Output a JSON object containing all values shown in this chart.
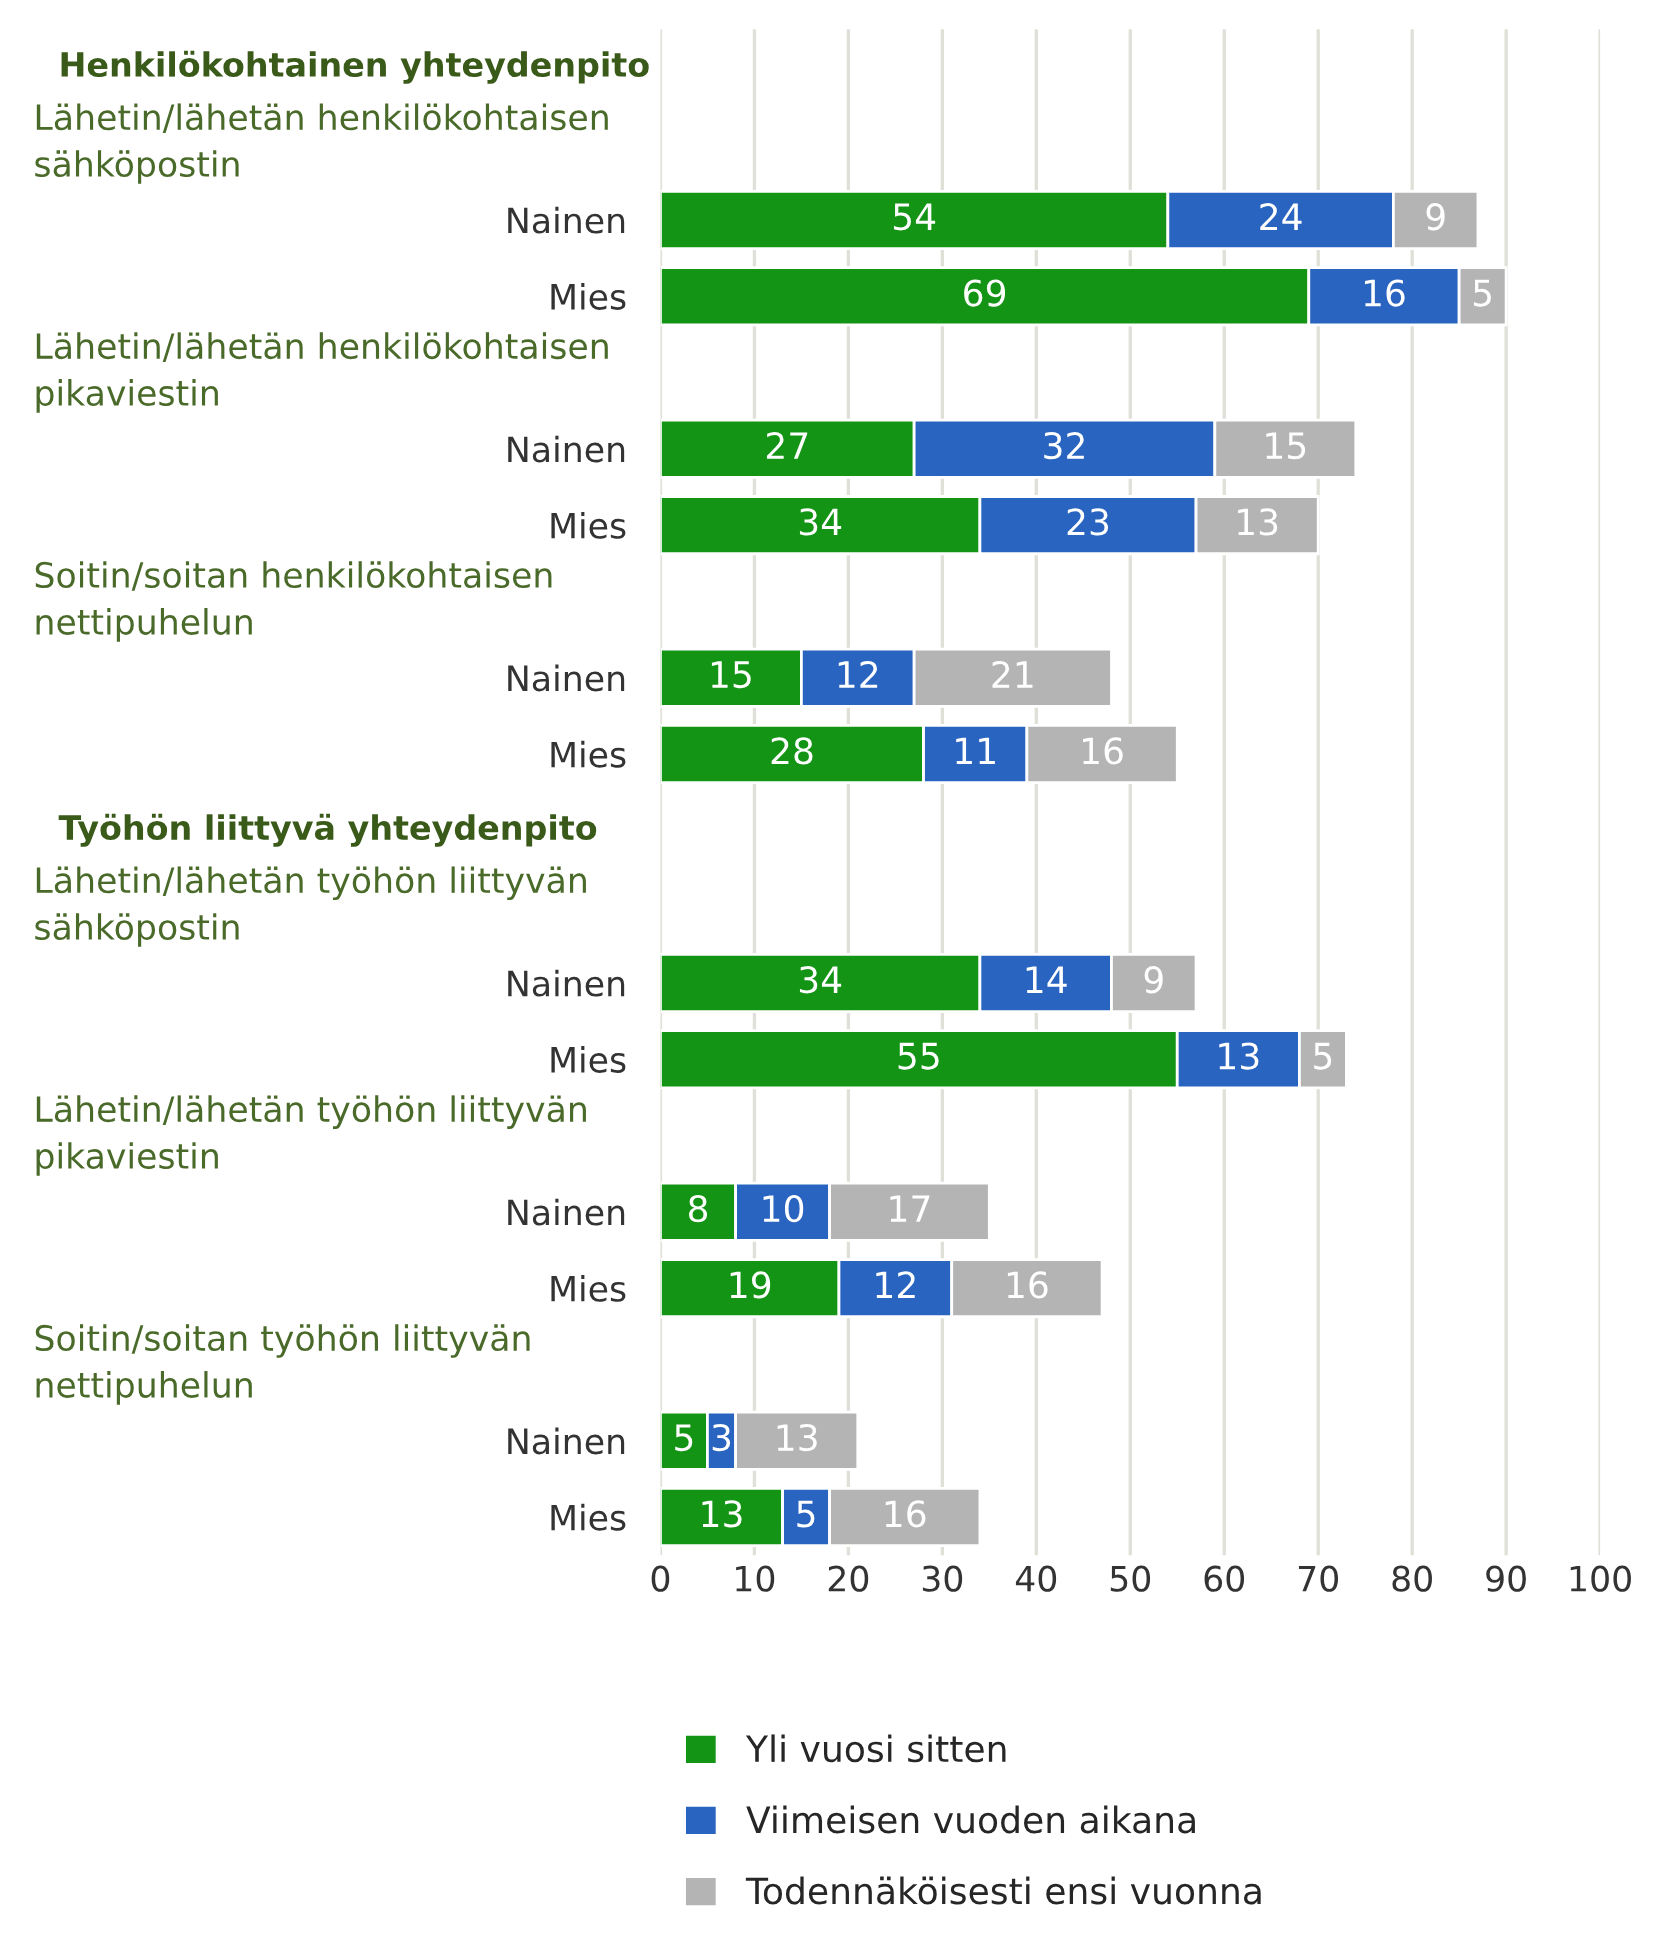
{
  "chart_data": {
    "type": "bar",
    "orientation": "horizontal",
    "stacked": true,
    "categories": [
      null,
      null,
      "Nainen",
      "Mies",
      null,
      "Nainen",
      "Mies",
      null,
      "Nainen",
      "Mies",
      null,
      null,
      "Nainen",
      "Mies",
      null,
      "Nainen",
      "Mies",
      null,
      "Nainen",
      "Mies"
    ],
    "series": [
      {
        "name": "Yli vuosi sitten",
        "color": "#149414",
        "values": [
          null,
          null,
          54,
          69,
          null,
          27,
          34,
          null,
          15,
          28,
          null,
          null,
          34,
          55,
          null,
          8,
          19,
          null,
          5,
          13
        ]
      },
      {
        "name": "Viimeisen vuoden aikana",
        "color": "#2864c0",
        "values": [
          null,
          null,
          24,
          16,
          null,
          32,
          23,
          null,
          12,
          11,
          null,
          null,
          14,
          13,
          null,
          10,
          12,
          null,
          3,
          5
        ]
      },
      {
        "name": "Todennäköisesti ensi vuonna",
        "color": "#b4b4b4",
        "values": [
          null,
          null,
          9,
          5,
          null,
          15,
          13,
          null,
          21,
          16,
          null,
          null,
          9,
          5,
          null,
          17,
          16,
          null,
          13,
          16
        ]
      }
    ],
    "annotations": [
      "Henkilökohtainen yhteydenpito",
      "Lähetin/lähetän henkilökohtaisen\nsähköpostin",
      "Lähetin/lähetän henkilökohtaisen\npikaviestin",
      "Soitin/soitan henkilökohtaisen\nnettipuhelun",
      "Työhön liittyvä yhteydenpito",
      "Lähetin/lähetän työhön liittyvän\nsähköpostin",
      "Lähetin/lähetän työhön liittyvän\npikaviestin",
      "Soitin/soitan työhön liittyvän\nnettipuhelun"
    ],
    "xlim": [
      0,
      100
    ],
    "xticks": [
      0,
      10,
      20,
      30,
      40,
      50,
      60,
      70,
      80,
      90,
      100
    ],
    "grid": "x",
    "legend": "bottom",
    "data_labels": true
  }
}
